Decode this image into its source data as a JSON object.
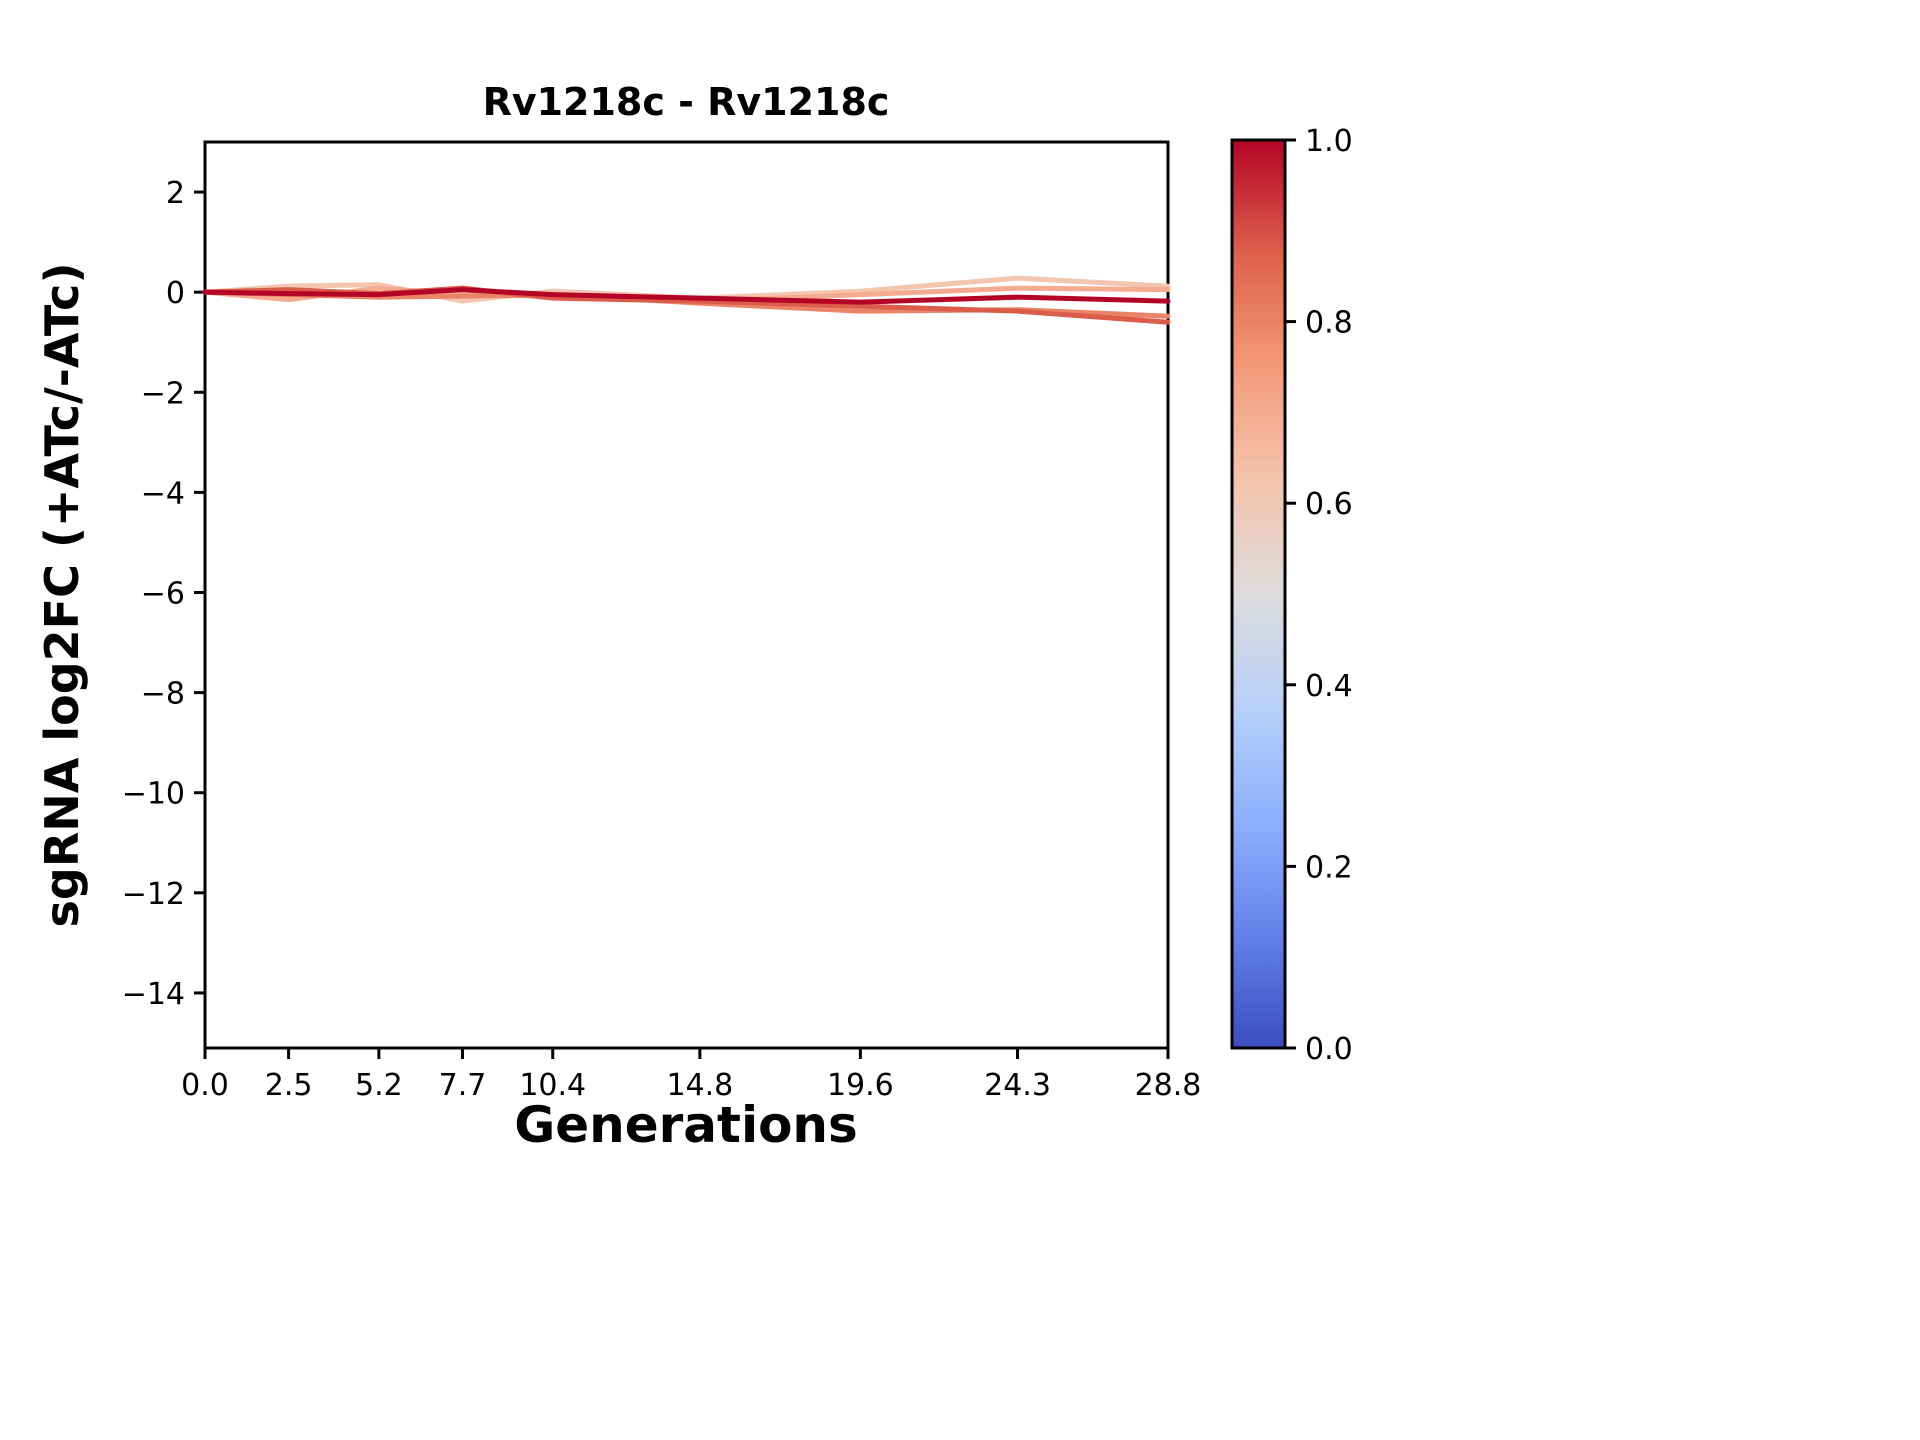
{
  "chart_data": {
    "type": "line",
    "title": "Rv1218c - Rv1218c",
    "xlabel": "Generations",
    "ylabel": "sgRNA log2FC (+ATc/-ATc)",
    "grid": false,
    "legend": "none",
    "xlim": [
      0.0,
      28.8
    ],
    "ylim": [
      -15.1,
      3.0
    ],
    "x": [
      0.0,
      2.5,
      5.2,
      7.7,
      10.4,
      14.8,
      19.6,
      24.3,
      28.8
    ],
    "xticks": [
      {
        "value": 0.0,
        "label": "0.0"
      },
      {
        "value": 2.5,
        "label": "2.5"
      },
      {
        "value": 5.2,
        "label": "5.2"
      },
      {
        "value": 7.7,
        "label": "7.7"
      },
      {
        "value": 10.4,
        "label": "10.4"
      },
      {
        "value": 14.8,
        "label": "14.8"
      },
      {
        "value": 19.6,
        "label": "19.6"
      },
      {
        "value": 24.3,
        "label": "24.3"
      },
      {
        "value": 28.8,
        "label": "28.8"
      }
    ],
    "yticks": [
      {
        "value": 2,
        "label": "2"
      },
      {
        "value": 0,
        "label": "0"
      },
      {
        "value": -2,
        "label": "−2"
      },
      {
        "value": -4,
        "label": "−4"
      },
      {
        "value": -6,
        "label": "−6"
      },
      {
        "value": -8,
        "label": "−8"
      },
      {
        "value": -10,
        "label": "−10"
      },
      {
        "value": -12,
        "label": "−12"
      },
      {
        "value": -14,
        "label": "−14"
      }
    ],
    "series": [
      {
        "color_value": 0.62,
        "values": [
          0.0,
          0.12,
          0.15,
          -0.18,
          0.02,
          -0.12,
          0.02,
          0.28,
          0.12
        ]
      },
      {
        "color_value": 0.7,
        "values": [
          0.0,
          -0.15,
          0.08,
          -0.05,
          -0.08,
          -0.18,
          -0.05,
          0.08,
          0.05
        ]
      },
      {
        "color_value": 0.8,
        "values": [
          0.0,
          -0.05,
          -0.1,
          -0.08,
          -0.05,
          -0.22,
          -0.38,
          -0.35,
          -0.48
        ]
      },
      {
        "color_value": 0.88,
        "values": [
          0.0,
          0.05,
          -0.03,
          0.08,
          -0.12,
          -0.18,
          -0.28,
          -0.38,
          -0.6
        ]
      },
      {
        "color_value": 1.0,
        "values": [
          0.0,
          -0.03,
          -0.05,
          0.05,
          -0.05,
          -0.12,
          -0.2,
          -0.1,
          -0.18
        ]
      }
    ],
    "colorbar": {
      "range": [
        0.0,
        1.0
      ],
      "ticks": [
        {
          "value": 0.0,
          "label": "0.0"
        },
        {
          "value": 0.2,
          "label": "0.2"
        },
        {
          "value": 0.4,
          "label": "0.4"
        },
        {
          "value": 0.6,
          "label": "0.6"
        },
        {
          "value": 0.8,
          "label": "0.8"
        },
        {
          "value": 1.0,
          "label": "1.0"
        }
      ]
    },
    "colormap": {
      "name": "coolwarm",
      "stops": [
        {
          "pos": 0.0,
          "color": "#3b4cc0"
        },
        {
          "pos": 0.125,
          "color": "#6282ea"
        },
        {
          "pos": 0.25,
          "color": "#8db0fe"
        },
        {
          "pos": 0.375,
          "color": "#b8d0f9"
        },
        {
          "pos": 0.5,
          "color": "#dddcdc"
        },
        {
          "pos": 0.625,
          "color": "#f5c4ad"
        },
        {
          "pos": 0.75,
          "color": "#f49a7b"
        },
        {
          "pos": 0.875,
          "color": "#de604d"
        },
        {
          "pos": 1.0,
          "color": "#b40426"
        }
      ]
    },
    "colors": {
      "axes": "#000000",
      "background": "#ffffff"
    }
  }
}
